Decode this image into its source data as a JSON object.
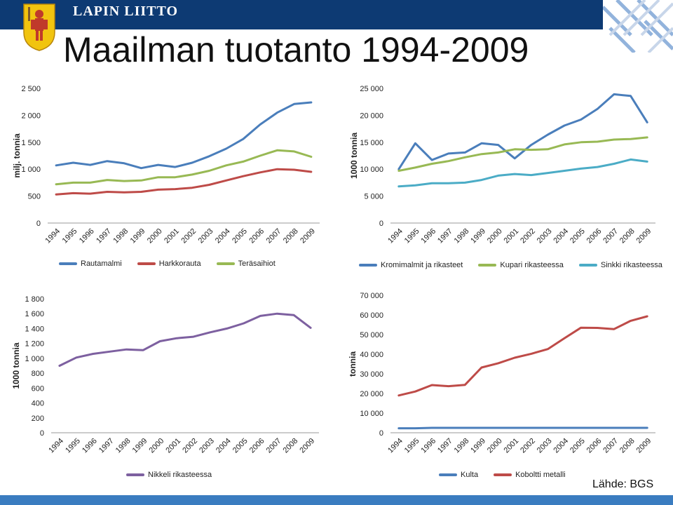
{
  "header": {
    "brand": "LAPIN LIITTO",
    "title": "Maailman tuotanto 1994-2009",
    "source": "Lähde: BGS"
  },
  "colors": {
    "header_band": "#0d3a73",
    "footer_band": "#3a7cc0",
    "blue": "#4a7ebb",
    "red": "#be4b48",
    "green": "#98b954",
    "cyan": "#4bacc6",
    "purple": "#7d60a0"
  },
  "chart_data": [
    {
      "type": "line",
      "x": [
        "1994",
        "1995",
        "1996",
        "1997",
        "1998",
        "1999",
        "2000",
        "2001",
        "2002",
        "2003",
        "2004",
        "2005",
        "2006",
        "2007",
        "2008",
        "2009"
      ],
      "ylabel": "milj. tonnia",
      "ylim": [
        0,
        2500
      ],
      "yticks": [
        "0",
        "500",
        "1 000",
        "1 500",
        "2 000",
        "2 500"
      ],
      "yticks_values": [
        0,
        500,
        1000,
        1500,
        2000,
        2500
      ],
      "grid": false,
      "legend": "bottom",
      "series": [
        {
          "name": "Rautamalmi",
          "color": "#4a7ebb",
          "values": [
            1070,
            1120,
            1080,
            1150,
            1110,
            1020,
            1080,
            1040,
            1120,
            1240,
            1380,
            1560,
            1830,
            2050,
            2210,
            2240
          ]
        },
        {
          "name": "Harkkorauta",
          "color": "#be4b48",
          "values": [
            530,
            555,
            545,
            580,
            570,
            580,
            620,
            630,
            655,
            710,
            790,
            870,
            940,
            1000,
            990,
            950
          ]
        },
        {
          "name": "Teräsaihiot",
          "color": "#98b954",
          "values": [
            720,
            750,
            750,
            800,
            780,
            790,
            850,
            850,
            900,
            970,
            1070,
            1140,
            1250,
            1350,
            1330,
            1230
          ]
        }
      ]
    },
    {
      "type": "line",
      "x": [
        "1994",
        "1995",
        "1996",
        "1997",
        "1998",
        "1999",
        "2000",
        "2001",
        "2002",
        "2003",
        "2004",
        "2005",
        "2006",
        "2007",
        "2008",
        "2009"
      ],
      "ylabel": "1000 tonnia",
      "ylim": [
        0,
        25000
      ],
      "yticks": [
        "0",
        "5 000",
        "10 000",
        "15 000",
        "20 000",
        "25 000"
      ],
      "yticks_values": [
        0,
        5000,
        10000,
        15000,
        20000,
        25000
      ],
      "grid": false,
      "legend": "bottom",
      "series": [
        {
          "name": "Kromimalmit  ja rikasteet",
          "color": "#4a7ebb",
          "values": [
            10000,
            14800,
            11700,
            12900,
            13100,
            14800,
            14500,
            12000,
            14500,
            16400,
            18100,
            19200,
            21200,
            23900,
            23600,
            18700
          ]
        },
        {
          "name": "Kupari rikasteessa",
          "color": "#98b954",
          "values": [
            9700,
            10300,
            11000,
            11500,
            12200,
            12800,
            13100,
            13700,
            13600,
            13700,
            14600,
            15000,
            15100,
            15500,
            15600,
            15900
          ]
        },
        {
          "name": "Sinkki rikasteessa",
          "color": "#4bacc6",
          "values": [
            6800,
            7000,
            7400,
            7400,
            7500,
            8000,
            8800,
            9100,
            8900,
            9300,
            9700,
            10100,
            10400,
            11000,
            11800,
            11400
          ]
        }
      ]
    },
    {
      "type": "line",
      "x": [
        "1994",
        "1995",
        "1996",
        "1997",
        "1998",
        "1999",
        "2000",
        "2001",
        "2002",
        "2003",
        "2004",
        "2005",
        "2006",
        "2007",
        "2008",
        "2009"
      ],
      "ylabel": "1000 tonnia",
      "ylim": [
        0,
        1800
      ],
      "yticks": [
        "0",
        "200",
        "400",
        "600",
        "800",
        "1 000",
        "1 200",
        "1 400",
        "1 600",
        "1 800"
      ],
      "yticks_values": [
        0,
        200,
        400,
        600,
        800,
        1000,
        1200,
        1400,
        1600,
        1800
      ],
      "grid": false,
      "legend": "bottom",
      "series": [
        {
          "name": "Nikkeli rikasteessa",
          "color": "#7d60a0",
          "values": [
            900,
            1010,
            1060,
            1090,
            1120,
            1110,
            1230,
            1270,
            1290,
            1350,
            1400,
            1470,
            1570,
            1600,
            1580,
            1410
          ]
        }
      ]
    },
    {
      "type": "line",
      "x": [
        "1994",
        "1995",
        "1996",
        "1997",
        "1998",
        "1999",
        "2000",
        "2001",
        "2002",
        "2003",
        "2004",
        "2005",
        "2006",
        "2007",
        "2008",
        "2009"
      ],
      "ylabel": "tonnia",
      "ylim": [
        0,
        70000
      ],
      "yticks": [
        "0",
        "10 000",
        "20 000",
        "30 000",
        "40 000",
        "50 000",
        "60 000",
        "70 000"
      ],
      "yticks_values": [
        0,
        10000,
        20000,
        30000,
        40000,
        50000,
        60000,
        70000
      ],
      "grid": false,
      "legend": "bottom",
      "series": [
        {
          "name": "Kulta",
          "color": "#4a7ebb",
          "values": [
            2300,
            2300,
            2500,
            2500,
            2500,
            2500,
            2500,
            2500,
            2500,
            2500,
            2500,
            2500,
            2500,
            2500,
            2500,
            2500
          ]
        },
        {
          "name": "Koboltti metalli",
          "color": "#be4b48",
          "values": [
            19000,
            21000,
            24300,
            23700,
            24400,
            33200,
            35400,
            38200,
            40200,
            42600,
            48100,
            53500,
            53400,
            52800,
            57000,
            59300
          ]
        }
      ]
    }
  ]
}
